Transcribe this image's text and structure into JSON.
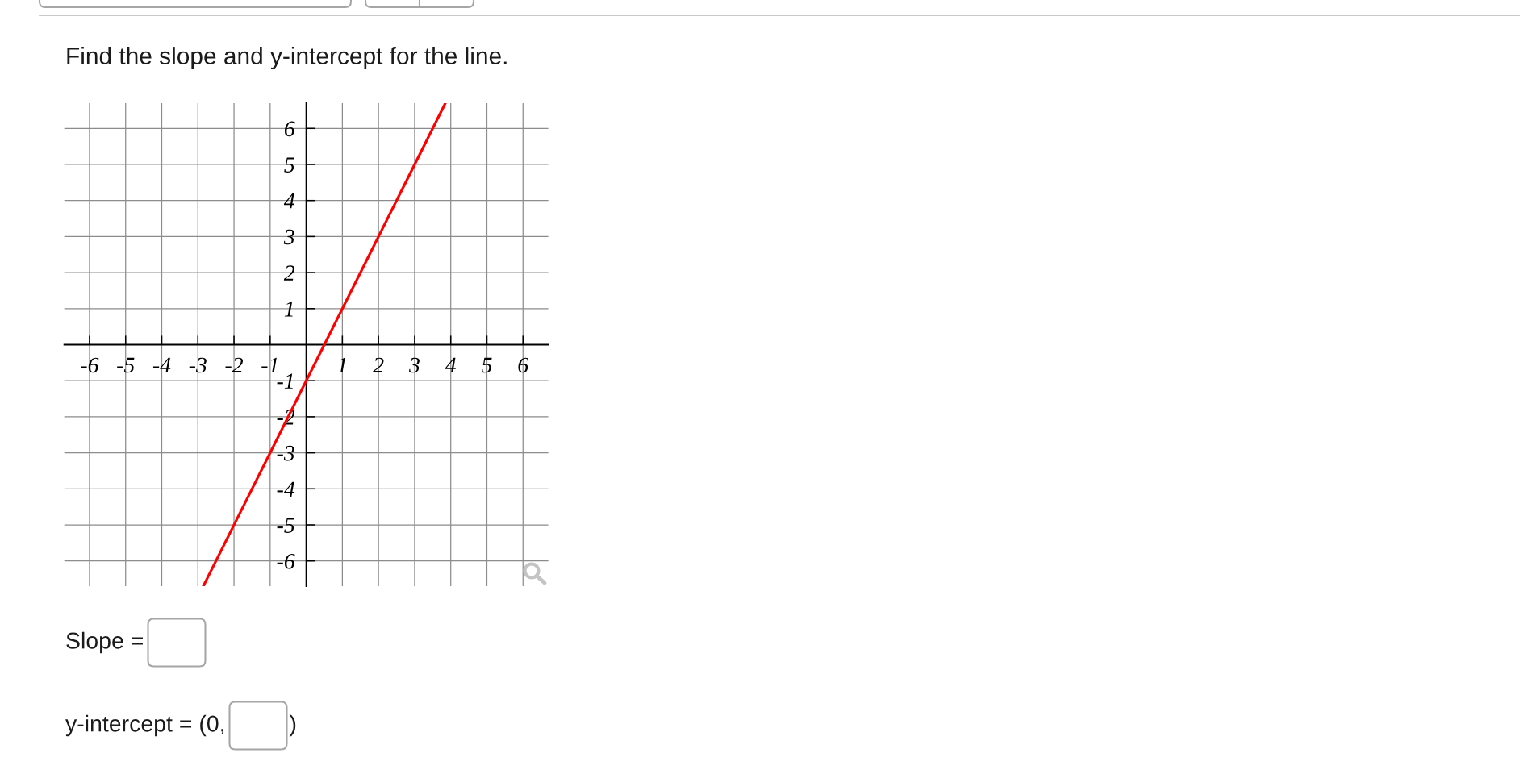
{
  "chart_data": {
    "type": "line",
    "title": "Find the slope and y-intercept for the line.",
    "annotations": [
      "Slope =",
      "y-intercept = (0,",
      ")"
    ],
    "x": [
      -2.85,
      3.85
    ],
    "series": [
      {
        "color": "#ff0000",
        "values": [
          -6.7,
          6.7
        ]
      }
    ],
    "xlim": [
      -6.7,
      6.7
    ],
    "ylim": [
      -6.7,
      6.7
    ],
    "xticks": [
      -6,
      -5,
      -4,
      -3,
      -2,
      -1,
      1,
      2,
      3,
      4,
      5,
      6
    ],
    "yticks": [
      -6,
      -5,
      -4,
      -3,
      -2,
      -1,
      1,
      2,
      3,
      4,
      5,
      6
    ],
    "grid": true,
    "line_style": "solid"
  }
}
